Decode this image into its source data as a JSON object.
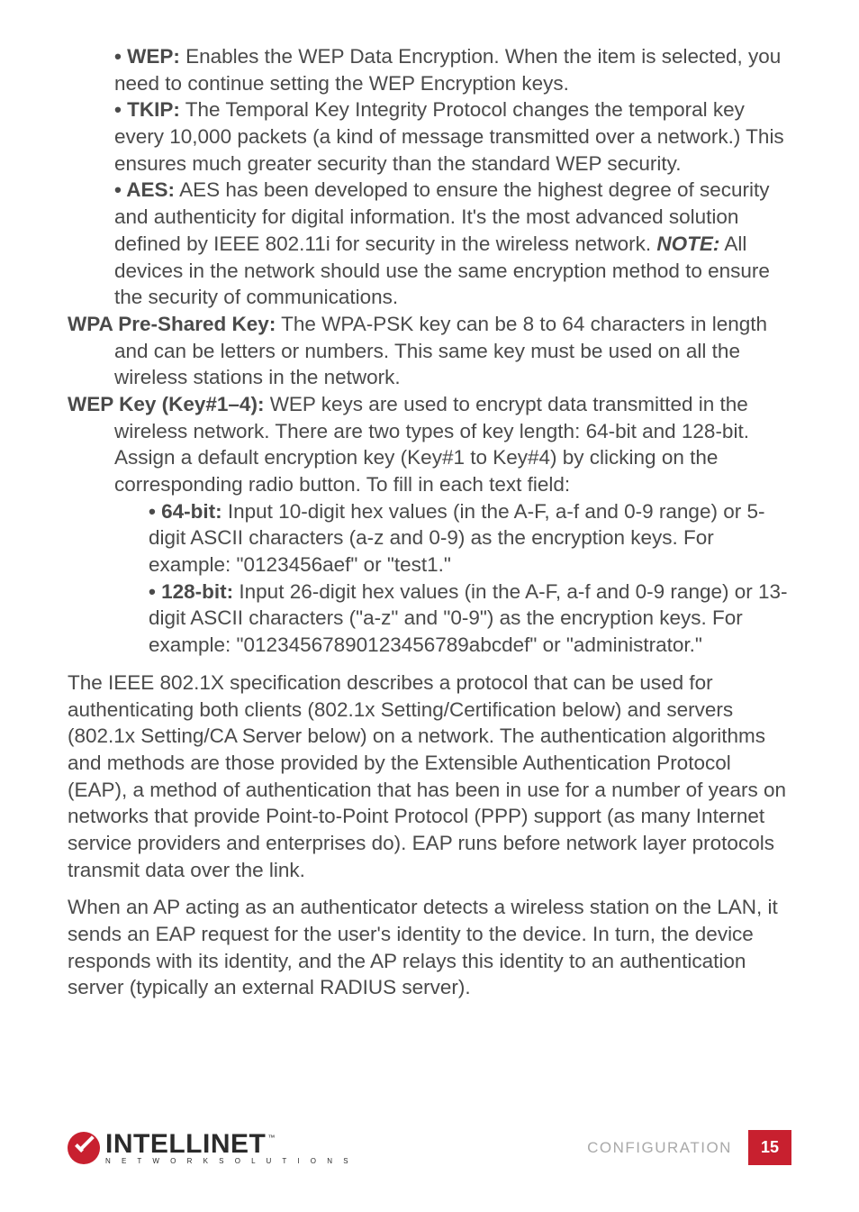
{
  "bullets_top": [
    {
      "label": "WEP:",
      "text": " Enables the WEP Data Encryption. When the item is selected, you need to continue setting the WEP Encryption keys."
    },
    {
      "label": "TKIP:",
      "text": " The Temporal Key Integrity Protocol changes the temporal key every 10,000 packets (a kind of message transmitted over a network.) This ensures much greater security than the standard WEP security."
    },
    {
      "label": "AES:",
      "text": " AES has been developed to ensure the highest degree of security and authenticity for digital information. It's the most advanced solution defined by IEEE 802.11i for security in the wireless network. ",
      "note_label": "NOTE:",
      "note_text": " All devices in the network should use the same encryption method to ensure the security of communications."
    }
  ],
  "wpa": {
    "label": "WPA Pre-Shared Key:",
    "text": " The WPA-PSK key can be 8 to 64 characters in length and can be letters or numbers. This same key must be used on all the wireless stations in the network."
  },
  "wep": {
    "label": "WEP Key (Key#1–4):",
    "text": " WEP keys are used to encrypt data transmitted in the wireless network. There are two types of key length: 64-bit and 128-bit. Assign a default encryption key (Key#1 to Key#4) by clicking on the corresponding radio button. To fill in each text field:"
  },
  "wep_bullets": [
    {
      "label": "64-bit:",
      "text": " Input 10-digit hex values (in the A-F, a-f and 0-9 range) or 5-digit ASCII characters (a-z and 0-9) as the encryption keys. For example: \"0123456aef\" or \"test1.\""
    },
    {
      "label": "128-bit:",
      "text": " Input 26-digit hex values (in the A-F, a-f and 0-9 range) or 13-digit ASCII characters (\"a-z\" and \"0-9\") as the encryption keys. For example: \"01234567890123456789abcdef\" or \"administrator.\""
    }
  ],
  "para1": "The IEEE 802.1X specification describes a protocol that can be used for authenticating both clients (802.1x Setting/Certification below) and servers (802.1x Setting/CA Server below) on a network. The authentication algorithms and methods are those provided by the Extensible Authentication Protocol (EAP), a method of authentication that has been in use for a number of years on networks that provide Point-to-Point Protocol (PPP) support (as many Internet service providers and enterprises do). EAP runs before network layer protocols transmit data over the link.",
  "para2": "When an AP acting as an authenticator detects a wireless station on the LAN, it sends an EAP request for the user's identity to the device. In turn, the device responds with its identity, and the AP relays this identity to an authentication server (typically an external RADIUS server).",
  "footer": {
    "logo_main": "INTELLINET",
    "logo_sub": "N E T W O R K   S O L U T I O N S",
    "section": "CONFIGURATION",
    "page": "15"
  },
  "colors": {
    "text": "#4a4a4a",
    "accent": "#c8202f",
    "footer_label": "#a9a9a9"
  }
}
